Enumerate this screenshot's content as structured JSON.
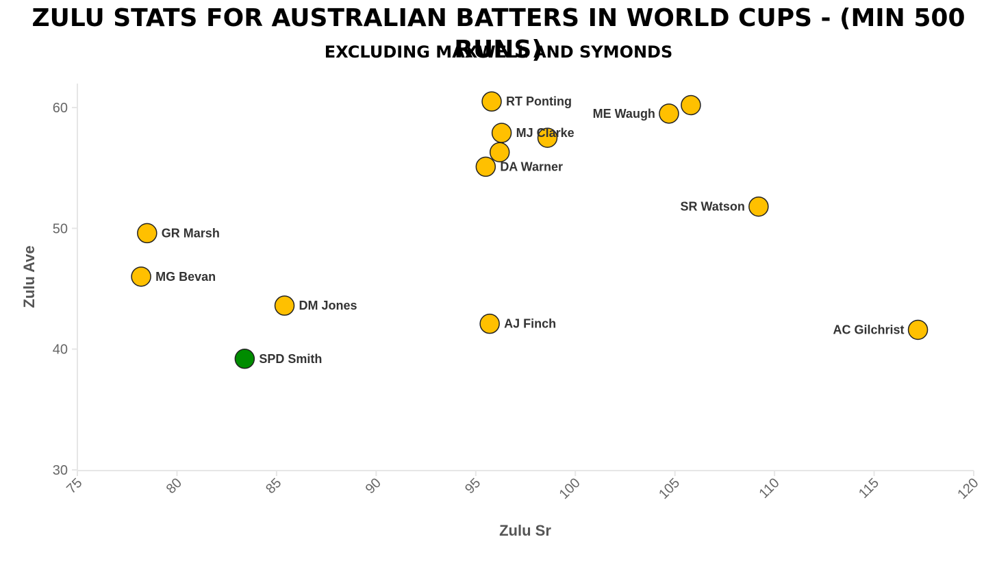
{
  "chart_data": {
    "type": "scatter",
    "title": "ZULU STATS FOR AUSTRALIAN BATTERS IN WORLD CUPS - (MIN 500 RUNS)",
    "subtitle": "EXCLUDING MAXWELL AND SYMONDS",
    "xlabel": "Zulu Sr",
    "ylabel": "Zulu Ave",
    "xlim": [
      75,
      120
    ],
    "ylim": [
      30,
      62
    ],
    "xticks": [
      "75",
      "80",
      "85",
      "90",
      "95",
      "100",
      "105",
      "110",
      "115",
      "120"
    ],
    "yticks": [
      "30",
      "40",
      "50",
      "60"
    ],
    "grid": false,
    "colors": {
      "default": "#FFC000",
      "highlight": "#008C00",
      "stroke": "#222222"
    },
    "points": [
      {
        "name": "RT Ponting",
        "x": 95.8,
        "y": 60.5,
        "label": "RT Ponting",
        "label_side": "right",
        "highlight": false
      },
      {
        "name": "ME Waugh",
        "x": 104.7,
        "y": 59.5,
        "label": "ME Waugh",
        "label_side": "left",
        "highlight": false
      },
      {
        "name": "",
        "x": 105.8,
        "y": 60.2,
        "label": "",
        "label_side": "right",
        "highlight": false
      },
      {
        "name": "MJ Clarke",
        "x": 96.3,
        "y": 57.9,
        "label": "MJ Clarke",
        "label_side": "right",
        "highlight": false
      },
      {
        "name": "",
        "x": 98.6,
        "y": 57.5,
        "label": "",
        "label_side": "right",
        "highlight": false
      },
      {
        "name": "",
        "x": 96.2,
        "y": 56.3,
        "label": "",
        "label_side": "right",
        "highlight": false
      },
      {
        "name": "DA Warner",
        "x": 95.5,
        "y": 55.1,
        "label": "DA Warner",
        "label_side": "right",
        "highlight": false
      },
      {
        "name": "SR Watson",
        "x": 109.2,
        "y": 51.8,
        "label": "SR Watson",
        "label_side": "left",
        "highlight": false
      },
      {
        "name": "GR Marsh",
        "x": 78.5,
        "y": 49.6,
        "label": "GR Marsh",
        "label_side": "right",
        "highlight": false
      },
      {
        "name": "MG Bevan",
        "x": 78.2,
        "y": 46.0,
        "label": "MG Bevan",
        "label_side": "right",
        "highlight": false
      },
      {
        "name": "DM Jones",
        "x": 85.4,
        "y": 43.6,
        "label": "DM Jones",
        "label_side": "right",
        "highlight": false
      },
      {
        "name": "AJ Finch",
        "x": 95.7,
        "y": 42.1,
        "label": "AJ Finch",
        "label_side": "right",
        "highlight": false
      },
      {
        "name": "AC Gilchrist",
        "x": 117.2,
        "y": 41.6,
        "label": "AC Gilchrist",
        "label_side": "left",
        "highlight": false
      },
      {
        "name": "SPD Smith",
        "x": 83.4,
        "y": 39.2,
        "label": "SPD Smith",
        "label_side": "right",
        "highlight": true
      }
    ]
  }
}
